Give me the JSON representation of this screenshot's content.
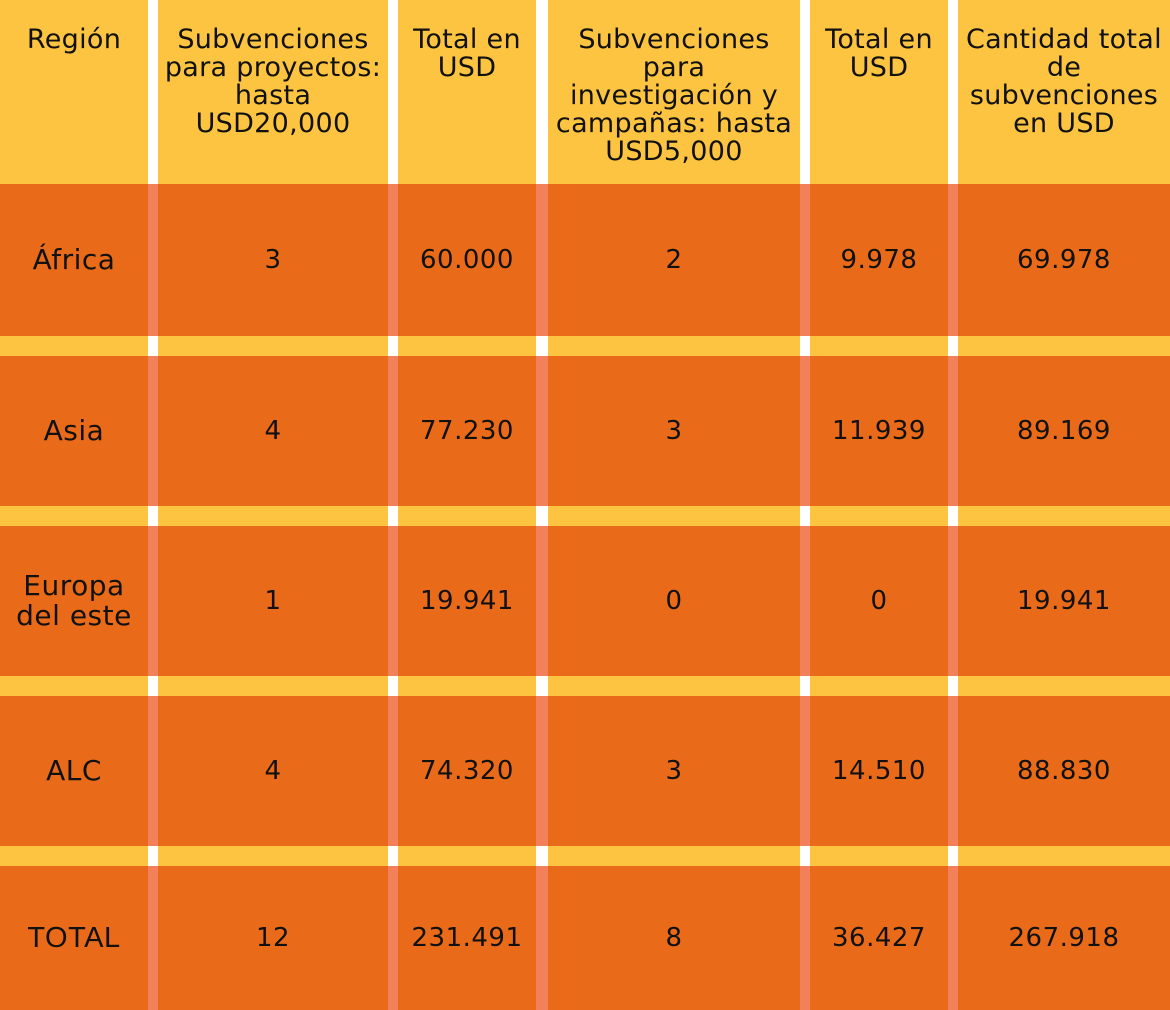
{
  "headers": [
    "Región",
    "Subvenciones para proyectos: hasta USD20,000",
    "Total en USD",
    "Subvenciones para investigación y campañas: hasta USD5,000",
    "Total en USD",
    "Cantidad total de subvenciones en USD"
  ],
  "rows": [
    {
      "region": "África",
      "projects": "3",
      "projects_total": "60.000",
      "research": "2",
      "research_total": "9.978",
      "total": "69.978"
    },
    {
      "region": "Asia",
      "projects": "4",
      "projects_total": "77.230",
      "research": "3",
      "research_total": "11.939",
      "total": "89.169"
    },
    {
      "region": "Europa del este",
      "projects": "1",
      "projects_total": "19.941",
      "research": "0",
      "research_total": "0",
      "total": "19.941"
    },
    {
      "region": "ALC",
      "projects": "4",
      "projects_total": "74.320",
      "research": "3",
      "research_total": "14.510",
      "total": "88.830"
    },
    {
      "region": "TOTAL",
      "projects": "12",
      "projects_total": "231.491",
      "research": "8",
      "research_total": "36.427",
      "total": "267.918"
    }
  ],
  "colors": {
    "header_bg": "#fcc440",
    "row_bg": "#e96b19",
    "separator": "#ffffff"
  }
}
